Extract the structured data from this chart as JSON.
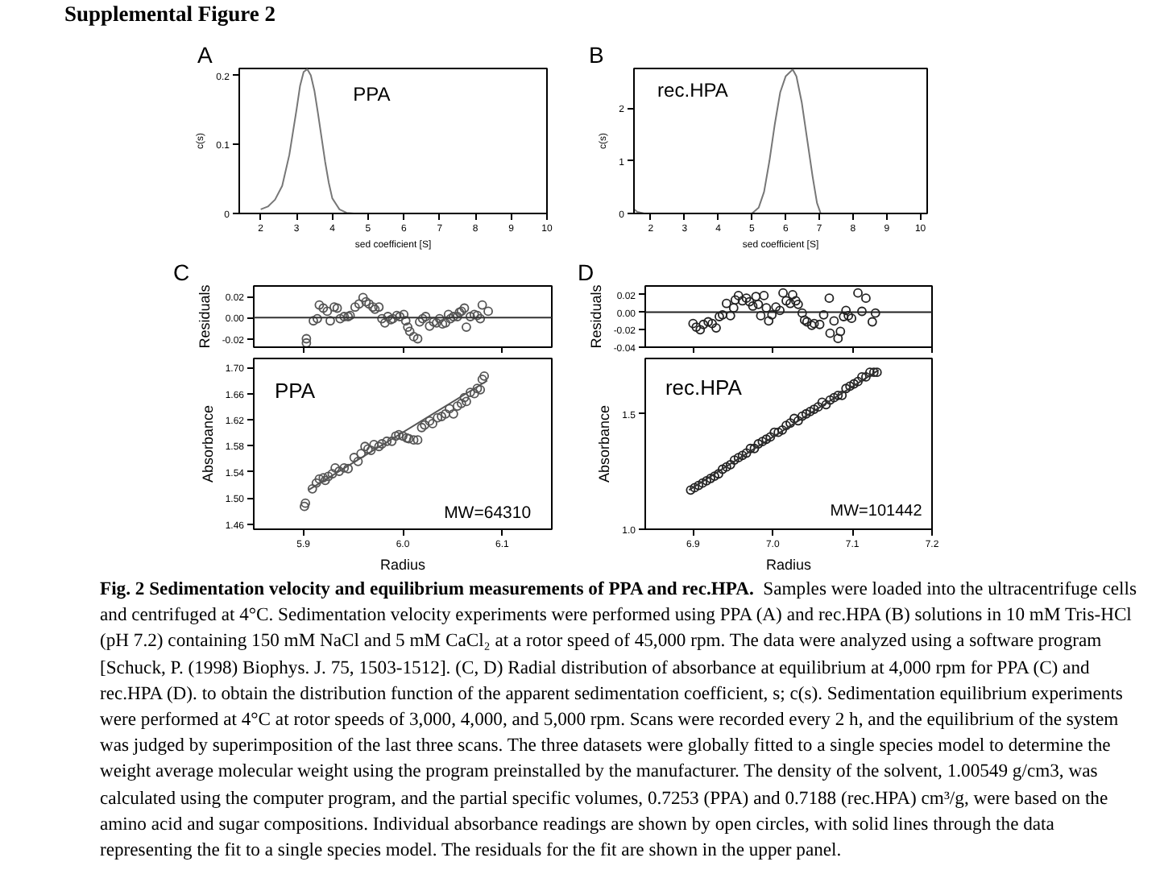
{
  "chart_data": [
    {
      "type": "other",
      "title": "Supplemental Figure 2"
    },
    {
      "type": "line",
      "title": "A",
      "xlabel": "sed coefficient [S]",
      "ylabel": "c(s)",
      "color": "#777777",
      "annotations": [
        "PPA"
      ],
      "x": [
        2.0,
        2.2,
        2.4,
        2.6,
        2.8,
        3.0,
        3.1,
        3.2,
        3.3,
        3.4,
        3.5,
        3.6,
        3.7,
        3.8,
        3.9,
        4.0,
        4.2,
        4.4,
        4.6,
        5.0,
        10.0
      ],
      "values": [
        0.006,
        0.01,
        0.02,
        0.04,
        0.085,
        0.15,
        0.185,
        0.205,
        0.209,
        0.2,
        0.178,
        0.145,
        0.11,
        0.075,
        0.045,
        0.022,
        0.006,
        0.001,
        0,
        0,
        0
      ],
      "xlim": [
        1.4,
        10
      ],
      "ylim": [
        0,
        0.21
      ],
      "xticks": [
        2,
        3,
        4,
        5,
        6,
        7,
        8,
        9,
        10
      ],
      "yticks": [
        0,
        0.1,
        0.2
      ]
    },
    {
      "type": "line",
      "title": "B",
      "xlabel": "sed coefficient [S]",
      "ylabel": "c(s)",
      "color": "#777777",
      "annotations": [
        "rec.HPA"
      ],
      "x": [
        1.5,
        1.6,
        1.8,
        5.0,
        5.2,
        5.36,
        5.52,
        5.68,
        5.84,
        6.0,
        6.21,
        6.32,
        6.48,
        6.64,
        6.8,
        6.93,
        7.04,
        10.2
      ],
      "values": [
        0.08,
        0.03,
        0,
        0,
        0.11,
        0.41,
        1.0,
        1.7,
        2.3,
        2.6,
        2.73,
        2.6,
        2.1,
        1.4,
        0.7,
        0.2,
        0,
        0
      ],
      "xlim": [
        1.5,
        10.2
      ],
      "ylim": [
        0,
        2.75
      ],
      "xticks": [
        2,
        3,
        4,
        5,
        6,
        7,
        8,
        9,
        10
      ],
      "yticks": [
        0,
        1,
        2
      ]
    },
    {
      "type": "scatter",
      "title": "C",
      "ylabel": "Residuals",
      "color": "#555555",
      "marker": "circle",
      "tick_labels": "y",
      "x": [
        5.903,
        5.903,
        5.91,
        5.914,
        5.916,
        5.92,
        5.924,
        5.927,
        5.931,
        5.934,
        5.937,
        5.941,
        5.945,
        5.947,
        5.952,
        5.956,
        5.96,
        5.963,
        5.966,
        5.97,
        5.972,
        5.976,
        5.979,
        5.982,
        5.985,
        5.988,
        5.99,
        5.994,
        5.997,
        6.001,
        6.003,
        6.005,
        6.007,
        6.011,
        6.015,
        6.017,
        6.02,
        6.023,
        6.027,
        6.031,
        6.034,
        6.037,
        6.04,
        6.043,
        6.046,
        6.048,
        6.051,
        6.055,
        6.057,
        6.059,
        6.062,
        6.064,
        6.068,
        6.072,
        6.075,
        6.078,
        6.08,
        6.086
      ],
      "values": [
        -0.02,
        -0.024,
        -0.003,
        -0.001,
        0.012,
        0.009,
        0.006,
        -0.003,
        0.01,
        0.009,
        -0.001,
        0.001,
        0.001,
        0.002,
        0.01,
        0.013,
        0.019,
        0.015,
        0.013,
        0.01,
        0.008,
        0.01,
        -0.001,
        -0.005,
        0.001,
        -0.002,
        -0.001,
        0.002,
        0.001,
        0.003,
        -0.003,
        -0.009,
        -0.013,
        -0.018,
        -0.02,
        -0.004,
        -0.001,
        0.001,
        -0.008,
        -0.004,
        -0.005,
        -0.001,
        -0.006,
        -0.005,
        0.003,
        -0.001,
        0.001,
        0.001,
        0.005,
        0.006,
        0.009,
        -0.009,
        0.001,
        0.003,
        0.002,
        -0.001,
        0.012,
        0.006
      ],
      "xlim": [
        5.85,
        6.15
      ],
      "ylim": [
        -0.028,
        0.03
      ],
      "xticks": [
        {
          "value": 5.9,
          "label": null
        },
        {
          "value": 6.0,
          "label": null
        },
        {
          "value": 6.1,
          "label": null
        }
      ],
      "yticks": [
        -0.02,
        {
          "value": 0,
          "label": "0.00"
        },
        0.02
      ],
      "ref_lines": [
        {
          "axis": "y",
          "value": 0,
          "color": "#333333"
        }
      ]
    },
    {
      "type": "scatter",
      "xlabel": "Radius",
      "ylabel": "Absorbance",
      "annotations": [
        "PPA",
        "MW=64310"
      ],
      "series": [
        {
          "type": "scatter",
          "color": "#555555",
          "marker": "circle",
          "x": [
            5.901,
            5.902,
            5.909,
            5.913,
            5.916,
            5.92,
            5.922,
            5.925,
            5.929,
            5.932,
            5.936,
            5.941,
            5.945,
            5.951,
            5.955,
            5.958,
            5.962,
            5.965,
            5.968,
            5.971,
            5.976,
            5.979,
            5.984,
            5.989,
            5.993,
            5.996,
            6.0,
            6.004,
            6.006,
            6.011,
            6.015,
            6.019,
            6.022,
            6.027,
            6.03,
            6.035,
            6.039,
            6.043,
            6.047,
            6.051,
            6.055,
            6.059,
            6.062,
            6.064,
            6.068,
            6.072,
            6.075,
            6.078,
            6.08,
            6.082
          ],
          "values": [
            1.487,
            1.492,
            1.514,
            1.523,
            1.529,
            1.531,
            1.527,
            1.533,
            1.537,
            1.546,
            1.541,
            1.546,
            1.545,
            1.562,
            1.556,
            1.568,
            1.579,
            1.575,
            1.573,
            1.582,
            1.579,
            1.583,
            1.587,
            1.587,
            1.595,
            1.597,
            1.595,
            1.592,
            1.591,
            1.589,
            1.589,
            1.608,
            1.612,
            1.618,
            1.614,
            1.623,
            1.625,
            1.629,
            1.637,
            1.629,
            1.641,
            1.645,
            1.654,
            1.648,
            1.662,
            1.66,
            1.668,
            1.666,
            1.682,
            1.687
          ]
        },
        {
          "type": "line",
          "color": "#555555",
          "x": [
            5.905,
            6.085
          ],
          "values": [
            1.512,
            1.68
          ]
        }
      ],
      "xlim": [
        5.85,
        6.15
      ],
      "ylim": [
        1.452,
        1.714
      ],
      "xticks": [
        5.9,
        {
          "value": 6.0,
          "label": "6.0"
        },
        6.1
      ],
      "yticks": [
        1.46,
        {
          "value": 1.5,
          "label": "1.50"
        },
        1.54,
        1.58,
        1.62,
        1.66,
        {
          "value": 1.7,
          "label": "1.70"
        }
      ]
    },
    {
      "type": "scatter",
      "title": "D",
      "ylabel": "Residuals",
      "color": "#222222",
      "marker": "circle",
      "tick_labels": "y",
      "x": [
        6.9,
        6.904,
        6.909,
        6.913,
        6.919,
        6.924,
        6.929,
        6.933,
        6.937,
        6.942,
        6.947,
        6.951,
        6.953,
        6.957,
        6.962,
        6.967,
        6.971,
        6.975,
        6.979,
        6.982,
        6.985,
        6.989,
        6.992,
        6.995,
        6.999,
        7.004,
        7.009,
        7.013,
        7.017,
        7.022,
        7.025,
        7.029,
        7.032,
        7.037,
        7.04,
        7.043,
        7.049,
        7.052,
        7.059,
        7.064,
        7.071,
        7.072,
        7.077,
        7.082,
        7.085,
        7.089,
        7.092,
        7.095,
        7.099,
        7.107,
        7.112,
        7.117,
        7.125,
        7.129
      ],
      "values": [
        -0.013,
        -0.017,
        -0.02,
        -0.014,
        -0.011,
        -0.013,
        -0.018,
        -0.005,
        -0.003,
        0.01,
        -0.004,
        0.005,
        0.014,
        0.019,
        0.013,
        0.016,
        0.012,
        0.007,
        0.018,
        0.009,
        -0.004,
        0.019,
        0.005,
        -0.01,
        -0.003,
        0.006,
        0.002,
        0.022,
        0.013,
        0.01,
        0.02,
        0.013,
        0.009,
        -0.001,
        -0.009,
        -0.011,
        -0.015,
        -0.013,
        -0.014,
        -0.003,
        0.016,
        -0.024,
        -0.01,
        -0.03,
        -0.022,
        -0.005,
        0.002,
        -0.004,
        -0.007,
        0.022,
        0.001,
        0.016,
        -0.011,
        -0.001
      ],
      "xlim": [
        6.84,
        7.2
      ],
      "ylim": [
        -0.04,
        0.03
      ],
      "xticks": [
        {
          "value": 6.9,
          "label": null
        },
        {
          "value": 7.0,
          "label": null
        },
        {
          "value": 7.1,
          "label": null
        },
        {
          "value": 7.2,
          "label": null
        }
      ],
      "yticks": [
        -0.04,
        -0.02,
        {
          "value": 0,
          "label": "0.00"
        },
        0.02
      ],
      "ref_lines": [
        {
          "axis": "y",
          "value": 0,
          "color": "#222222"
        }
      ]
    },
    {
      "type": "scatter",
      "xlabel": "Radius",
      "ylabel": "Absorbance",
      "annotations": [
        "rec.HPA",
        "MW=101442"
      ],
      "series": [
        {
          "type": "scatter",
          "color": "#222222",
          "marker": "circle",
          "x": [
            6.897,
            6.902,
            6.907,
            6.912,
            6.917,
            6.922,
            6.927,
            6.932,
            6.937,
            6.942,
            6.947,
            6.952,
            6.957,
            6.962,
            6.967,
            6.972,
            6.977,
            6.982,
            6.987,
            6.992,
            6.997,
            7.002,
            7.007,
            7.012,
            7.017,
            7.022,
            7.027,
            7.032,
            7.037,
            7.042,
            7.047,
            7.052,
            7.057,
            7.062,
            7.067,
            7.072,
            7.077,
            7.082,
            7.087,
            7.092,
            7.097,
            7.102,
            7.107,
            7.112,
            7.117,
            7.122,
            7.127,
            7.131
          ],
          "values": [
            1.17,
            1.18,
            1.19,
            1.2,
            1.21,
            1.22,
            1.23,
            1.24,
            1.26,
            1.27,
            1.28,
            1.3,
            1.31,
            1.32,
            1.33,
            1.35,
            1.35,
            1.37,
            1.38,
            1.39,
            1.4,
            1.42,
            1.42,
            1.43,
            1.45,
            1.46,
            1.48,
            1.47,
            1.49,
            1.5,
            1.51,
            1.52,
            1.53,
            1.55,
            1.54,
            1.56,
            1.57,
            1.58,
            1.58,
            1.61,
            1.62,
            1.63,
            1.64,
            1.66,
            1.66,
            1.68,
            1.68,
            1.68
          ]
        },
        {
          "type": "line",
          "color": "#333333",
          "x": [
            6.895,
            7.133
          ],
          "values": [
            1.17,
            1.69
          ]
        }
      ],
      "xlim": [
        6.84,
        7.2
      ],
      "ylim": [
        1.0,
        1.74
      ],
      "xticks": [
        6.9,
        {
          "value": 7.0,
          "label": "7.0"
        },
        7.1,
        7.2
      ],
      "yticks": [
        {
          "value": 1.0,
          "label": "1.0"
        },
        1.5
      ]
    },
    {
      "type": "other",
      "title": "Fig. 2 Sedimentation velocity and equilibrium measurements of PPA and rec.HPA.",
      "annotations": [
        "Samples were loaded into the ultracentrifuge cells and centrifuged at 4°C. Sedimentation velocity experiments were performed using PPA (A) and rec.HPA (B) solutions in 10 mM Tris-HCl (pH 7.2) containing 150 mM NaCl and 5 mM CaCl₂ at a rotor speed of 45,000 rpm. The data were analyzed using a software program [Schuck, P. (1998) Biophys. J. 75, 1503-1512]. (C, D) Radial distribution of absorbance at equilibrium at 4,000 rpm for PPA (C) and rec.HPA (D). to obtain the distribution function of the apparent sedimentation coefficient, s; c(s). Sedimentation equilibrium experiments were performed at 4°C at rotor speeds of 3,000, 4,000, and 5,000 rpm. Scans were recorded every 2 h, and the equilibrium of the system was judged by superimposition of the last three scans. The three datasets were globally fitted to a single species model to determine the weight average molecular weight using the program preinstalled by the manufacturer. The density of the solvent, 1.00549 g/cm3, was calculated using the computer program, and the partial specific volumes, 0.7253 (PPA) and 0.7188 (rec.HPA) cm³/g, were based on the amino acid and sugar compositions. Individual absorbance readings are shown by open circles, with solid lines through the data representing the fit to a single species model. The residuals for the fit are shown in the upper panel."
      ]
    }
  ]
}
